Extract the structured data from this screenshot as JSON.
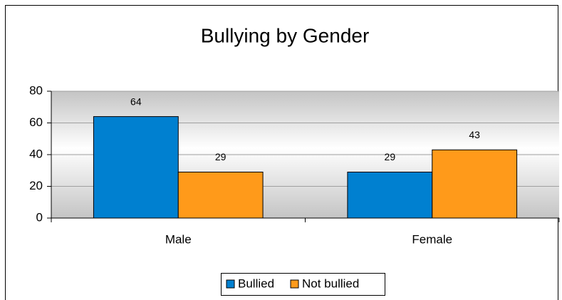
{
  "chart_data": {
    "type": "bar",
    "title": "Bullying by Gender",
    "categories": [
      "Male",
      "Female"
    ],
    "series": [
      {
        "name": "Bullied",
        "color": "#0080d0",
        "values": [
          64,
          29
        ]
      },
      {
        "name": "Not bullied",
        "color": "#ff9a1a",
        "values": [
          29,
          43
        ]
      }
    ],
    "ylim": [
      0,
      80
    ],
    "yticks": [
      0,
      20,
      40,
      60,
      80
    ],
    "grid": true,
    "legend": "bottom",
    "data_labels": true
  }
}
